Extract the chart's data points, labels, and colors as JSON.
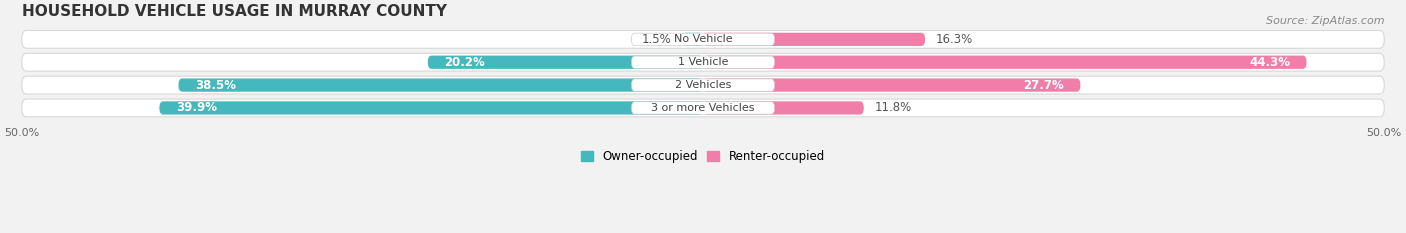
{
  "title": "HOUSEHOLD VEHICLE USAGE IN MURRAY COUNTY",
  "source": "Source: ZipAtlas.com",
  "categories": [
    "No Vehicle",
    "1 Vehicle",
    "2 Vehicles",
    "3 or more Vehicles"
  ],
  "owner_values": [
    1.5,
    20.2,
    38.5,
    39.9
  ],
  "renter_values": [
    16.3,
    44.3,
    27.7,
    11.8
  ],
  "owner_color": "#45B8BE",
  "renter_color": "#F07EA8",
  "renter_color_light": "#F5AABF",
  "owner_label": "Owner-occupied",
  "renter_label": "Renter-occupied",
  "xlim": [
    -50,
    50
  ],
  "background_color": "#f2f2f2",
  "bar_bg_color": "#e0e0e0",
  "title_fontsize": 11,
  "source_fontsize": 8,
  "label_fontsize": 8.5,
  "tick_fontsize": 8,
  "legend_fontsize": 8.5
}
